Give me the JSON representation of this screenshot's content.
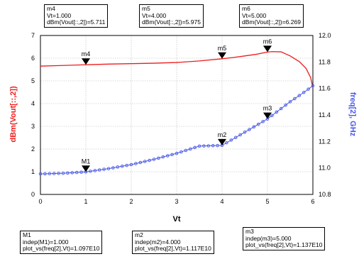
{
  "chart_data": {
    "type": "line",
    "xlabel": "Vt",
    "ylabel_left": "dBm(Vout[::,2])",
    "ylabel_right": "freq[2], GHz",
    "xlim": [
      0,
      6
    ],
    "ylim_left": [
      0,
      7
    ],
    "ylim_right": [
      10.8,
      12.0
    ],
    "xticks": [
      "0",
      "1",
      "2",
      "3",
      "4",
      "5",
      "6"
    ],
    "yticks_left": [
      "0",
      "1",
      "2",
      "3",
      "4",
      "5",
      "6",
      "7"
    ],
    "yticks_right": [
      "10.8",
      "11.0",
      "11.2",
      "11.4",
      "11.6",
      "11.8",
      "12.0"
    ],
    "grid": true,
    "series": [
      {
        "axis": "left",
        "color": "#ee1c1c",
        "style": "solid-line",
        "x": [
          0,
          0.5,
          1,
          1.5,
          2,
          2.5,
          3,
          3.5,
          4,
          4.25,
          4.5,
          4.75,
          5,
          5.1,
          5.3,
          5.5,
          5.7,
          5.85,
          5.95,
          6.0
        ],
        "values": [
          5.65,
          5.68,
          5.711,
          5.74,
          5.76,
          5.78,
          5.81,
          5.88,
          5.975,
          6.03,
          6.1,
          6.17,
          6.269,
          6.29,
          6.28,
          6.1,
          5.85,
          5.55,
          5.15,
          4.7
        ]
      },
      {
        "axis": "right",
        "color": "#4a58e8",
        "style": "circle-markers",
        "x": [
          0,
          0.5,
          1,
          1.5,
          2,
          2.5,
          3,
          3.5,
          4,
          4.5,
          5,
          5.5,
          5.8,
          6.0
        ],
        "values": [
          10.955,
          10.96,
          10.97,
          10.995,
          11.025,
          11.065,
          11.11,
          11.165,
          11.17,
          11.27,
          11.37,
          11.5,
          11.57,
          11.62
        ]
      }
    ],
    "markers_top": [
      {
        "label": "m4",
        "x": 1,
        "y": 5.711,
        "line1": "m4",
        "line2": "Vt=1.000",
        "line3": "dBm(Vout[::,2])=5.711"
      },
      {
        "label": "m5",
        "x": 4,
        "y": 5.975,
        "line1": "m5",
        "line2": "Vt=4.000",
        "line3": "dBm(Vout[::,2])=5.975"
      },
      {
        "label": "m6",
        "x": 5,
        "y": 6.269,
        "line1": "m6",
        "line2": "Vt=5.000",
        "line3": "dBm(Vout[::,2])=6.269"
      }
    ],
    "markers_bottom": [
      {
        "label": "M1",
        "x": 1,
        "y": 10.97,
        "line1": "M1",
        "line2": "indep(M1)=1.000",
        "line3": "plot_vs(freq[2],Vt)=1.097E10"
      },
      {
        "label": "m2",
        "x": 4,
        "y": 11.17,
        "line1": "m2",
        "line2": "indep(m2)=4.000",
        "line3": "plot_vs(freq[2],Vt)=1.117E10"
      },
      {
        "label": "m3",
        "x": 5,
        "y": 11.37,
        "line1": "m3",
        "line2": "indep(m3)=5.000",
        "line3": "plot_vs(freq[2],Vt)=1.137E10"
      }
    ]
  }
}
